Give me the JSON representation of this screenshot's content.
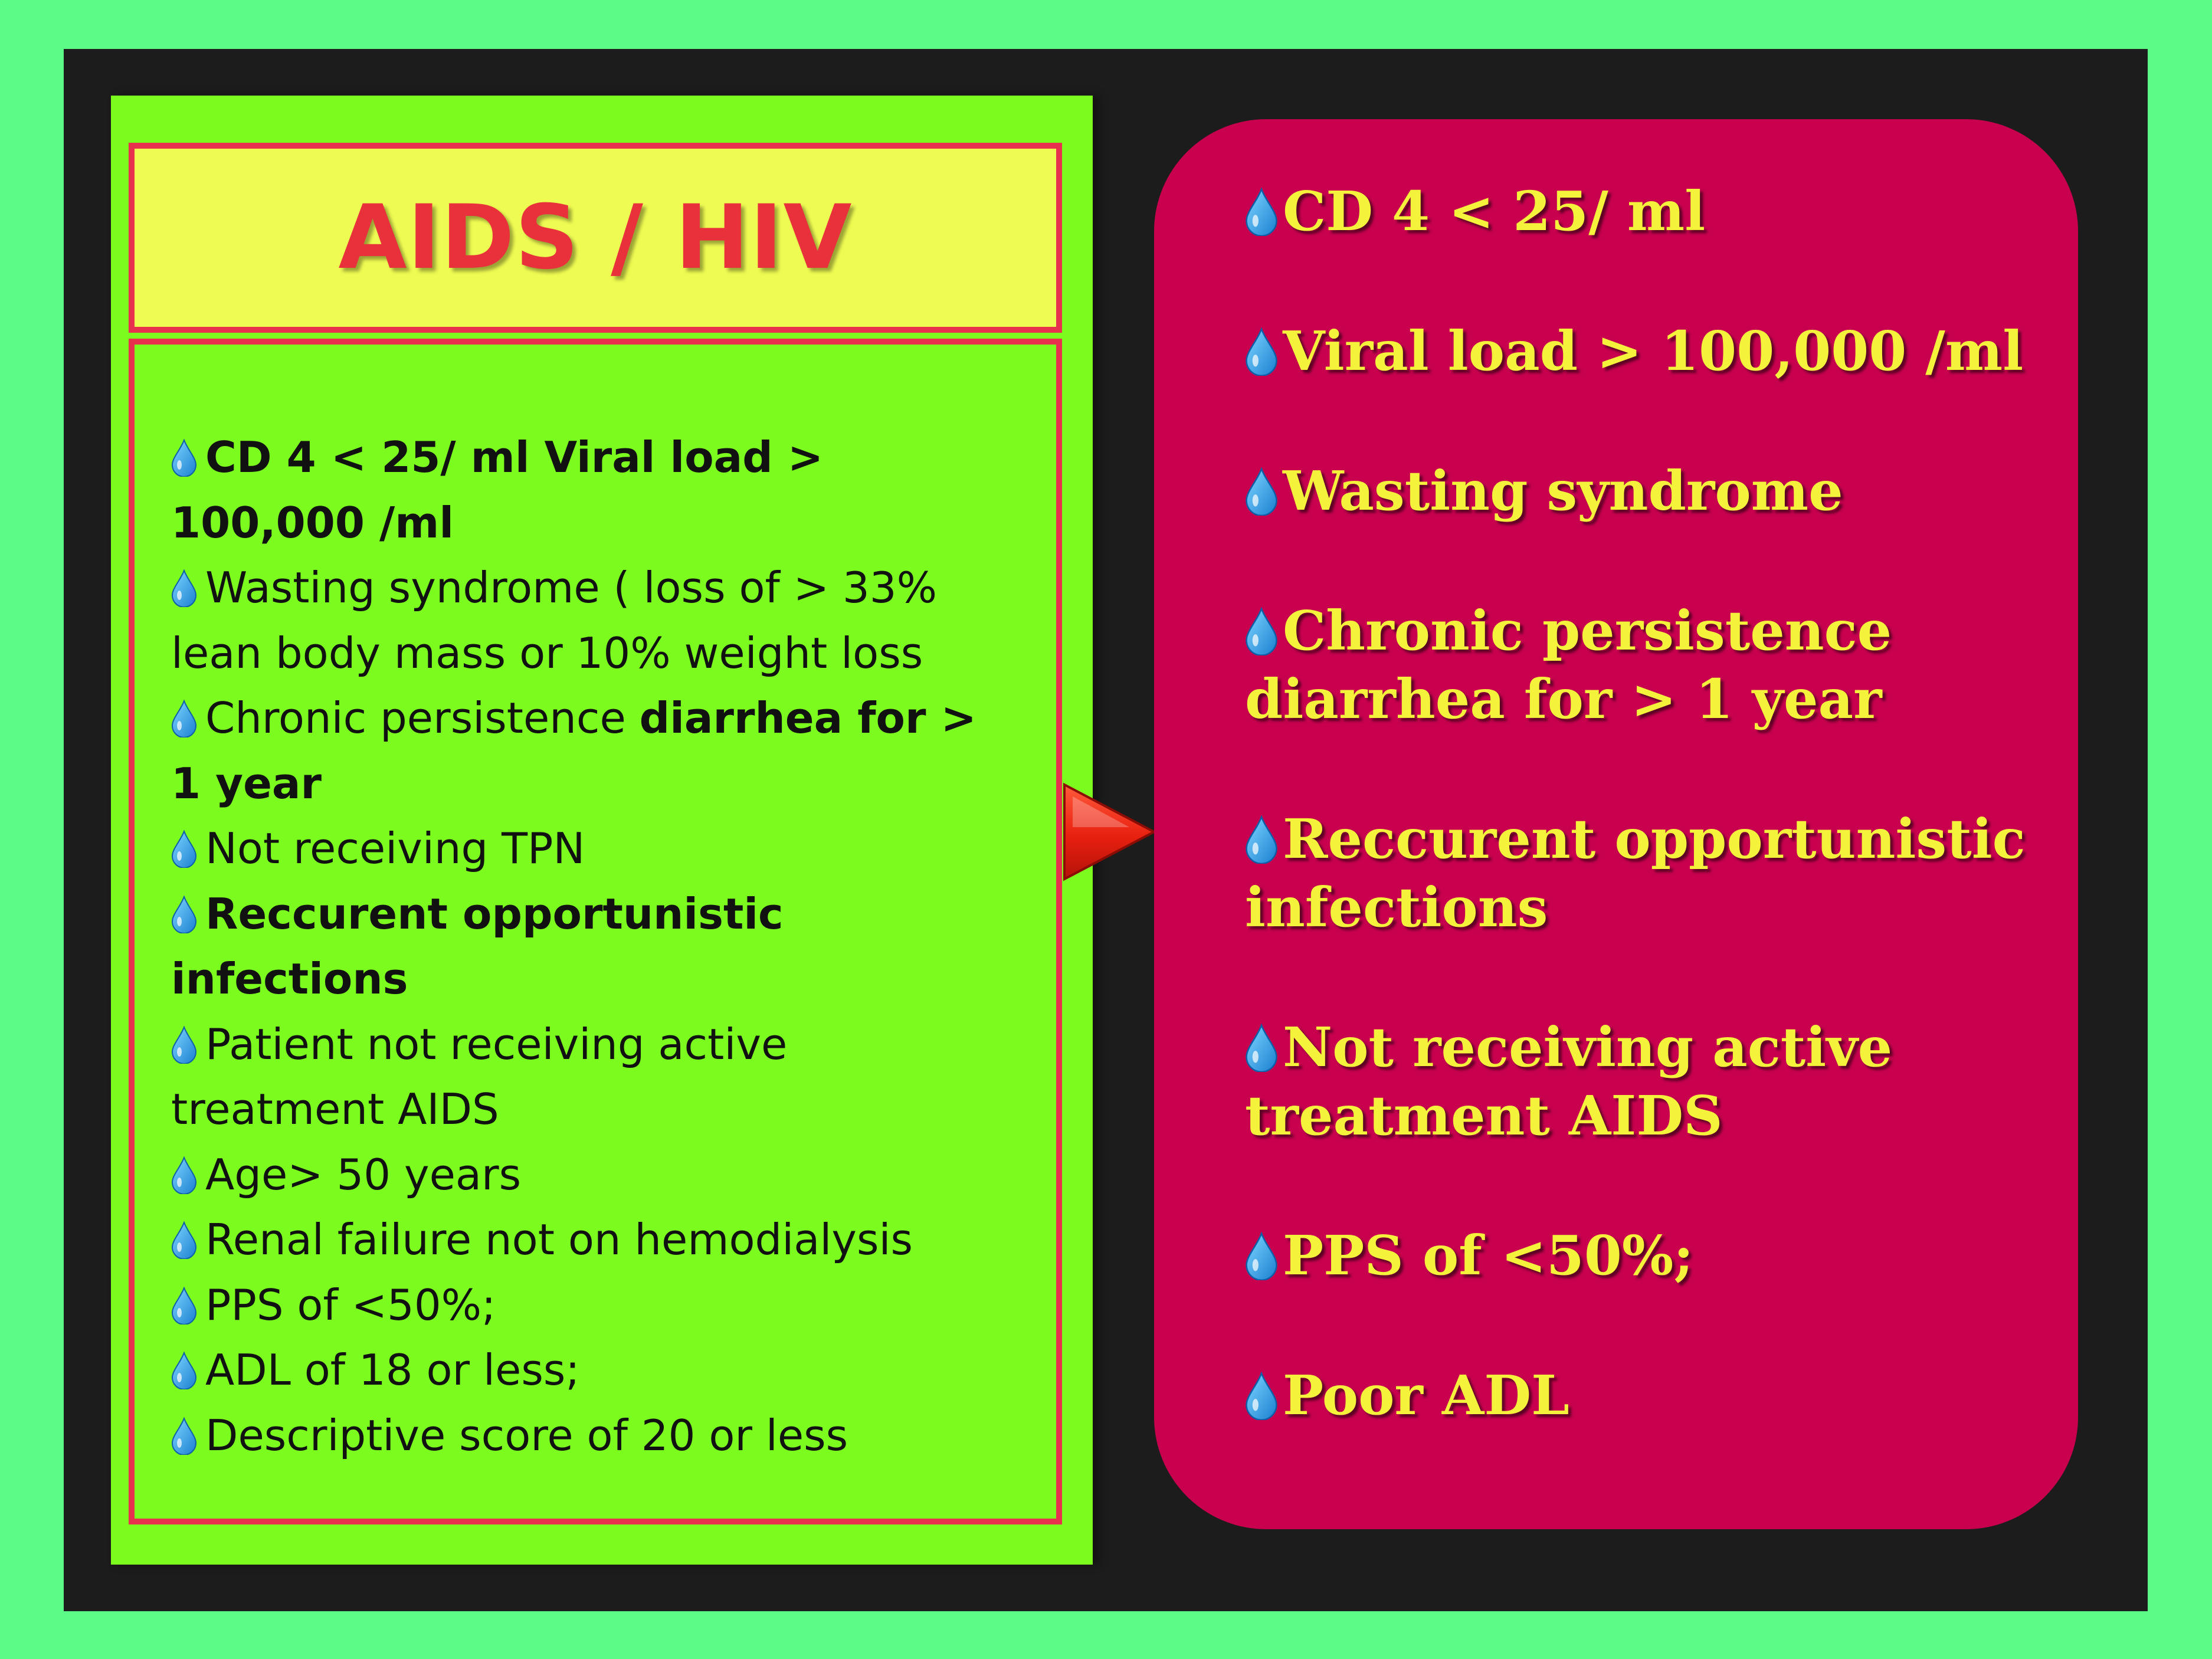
{
  "title": "AIDS / HIV",
  "icon": "water-drop-icon",
  "colors": {
    "background": "#5cfb87",
    "frame": "#1c1c1c",
    "green_panel": "#7cfc1e",
    "title_box": "#eefb52",
    "accent_red": "#e8314c",
    "right_panel": "#c8004e",
    "right_text": "#f5f23c"
  },
  "left_items": [
    {
      "parts": [
        {
          "text": "CD 4 < 25/ ml Viral load > 100,000 /ml",
          "bold": true
        }
      ]
    },
    {
      "parts": [
        {
          "text": "Wasting syndrome ( loss of > 33% lean body mass or 10% weight loss",
          "bold": false
        }
      ]
    },
    {
      "parts": [
        {
          "text": "Chronic persistence ",
          "bold": false
        },
        {
          "text": "diarrhea for > 1 year",
          "bold": true
        }
      ]
    },
    {
      "parts": [
        {
          "text": "Not receiving TPN",
          "bold": false
        }
      ]
    },
    {
      "parts": [
        {
          "text": "Reccurent opportunistic infections",
          "bold": true
        }
      ]
    },
    {
      "parts": [
        {
          "text": "Patient not receiving active treatment AIDS",
          "bold": false
        }
      ]
    },
    {
      "parts": [
        {
          "text": "Age> 50 years",
          "bold": false
        }
      ]
    },
    {
      "parts": [
        {
          "text": "Renal failure not on hemodialysis",
          "bold": false
        }
      ]
    },
    {
      "parts": [
        {
          "text": "PPS of <50%;",
          "bold": false
        }
      ]
    },
    {
      "parts": [
        {
          "text": "ADL of 18 or less;",
          "bold": false
        }
      ]
    },
    {
      "parts": [
        {
          "text": "Descriptive score of 20 or less",
          "bold": false
        }
      ]
    }
  ],
  "right_items": [
    "CD 4 < 25/ ml",
    "Viral load > 100,000 /ml",
    "Wasting syndrome",
    "Chronic persistence diarrhea for > 1 year",
    "Reccurent opportunistic infections",
    "Not receiving active treatment AIDS",
    "PPS of <50%;",
    "Poor ADL"
  ]
}
